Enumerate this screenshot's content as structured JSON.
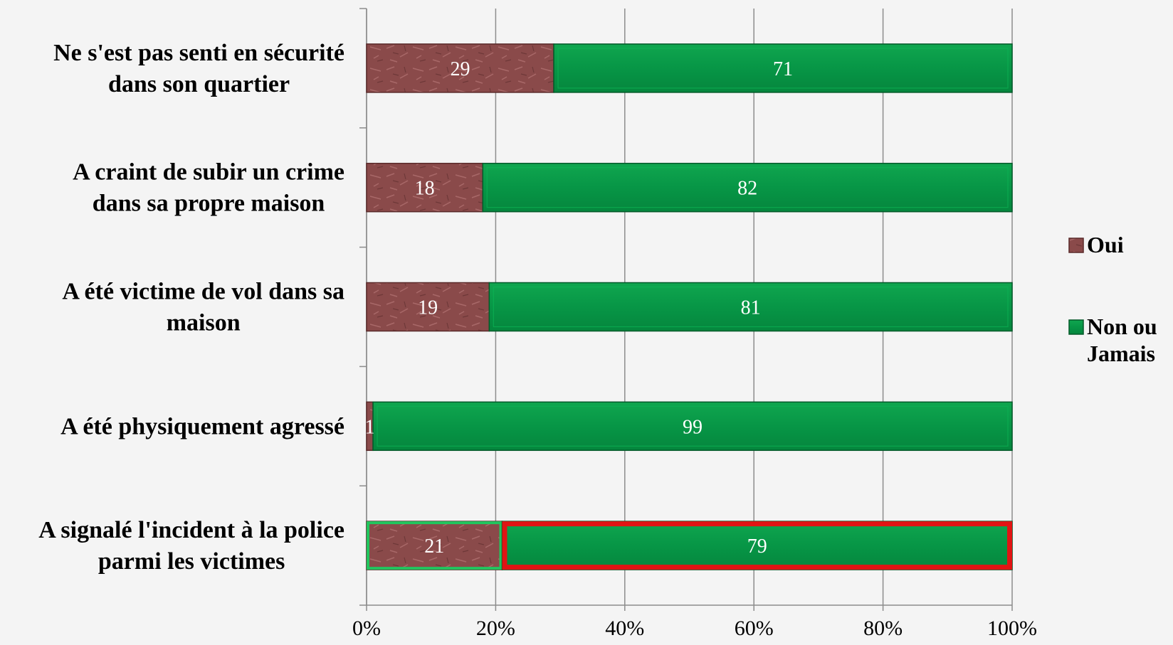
{
  "chart_data": {
    "type": "bar",
    "orientation": "horizontal",
    "stacking": "percent",
    "categories": [
      [
        "Ne s'est pas senti en sécurité",
        "dans son quartier"
      ],
      [
        "A craint de subir un crime",
        "dans sa propre maison"
      ],
      [
        "A été victime de vol dans sa",
        "maison"
      ],
      [
        "A été physiquement agressé"
      ],
      [
        "A signalé l'incident à la police",
        "parmi les victimes"
      ]
    ],
    "series": [
      {
        "name": "Oui",
        "color": "#8a4a4a",
        "values": [
          29,
          18,
          19,
          1,
          21
        ]
      },
      {
        "name": "Non ou Jamais",
        "color": "#0a9a46",
        "values": [
          71,
          82,
          81,
          99,
          79
        ]
      }
    ],
    "legend_lines": [
      [
        "Oui"
      ],
      [
        "Non ou",
        "Jamais"
      ]
    ],
    "x_ticks": [
      "0%",
      "20%",
      "40%",
      "60%",
      "80%",
      "100%"
    ],
    "xlim": [
      0,
      100
    ],
    "grid": true,
    "legend_position": "right",
    "highlights": [
      {
        "category_index": 4,
        "series_index": 0,
        "color": "#22c55e"
      },
      {
        "category_index": 4,
        "series_index": 1,
        "color": "#e11414"
      }
    ],
    "title": "",
    "xlabel": "",
    "ylabel": ""
  }
}
